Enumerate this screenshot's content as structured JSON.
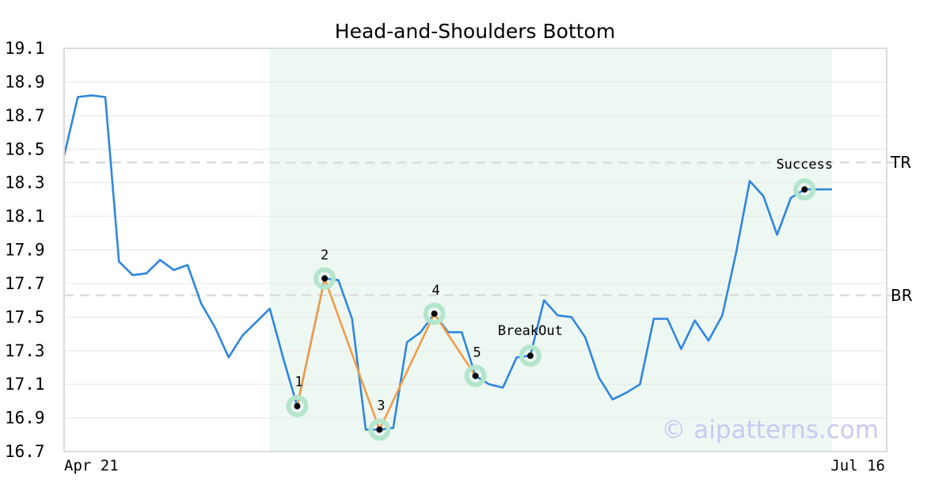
{
  "chart_data": {
    "type": "line",
    "title": "Head-and-Shoulders Bottom",
    "xlabel": "",
    "ylabel": "",
    "ylim": [
      16.7,
      19.1
    ],
    "yticks": [
      "19.1",
      "18.9",
      "18.7",
      "18.5",
      "18.3",
      "18.1",
      "17.9",
      "17.7",
      "17.5",
      "17.3",
      "17.1",
      "16.9",
      "16.7"
    ],
    "x_tick_labels": [
      {
        "index": 0,
        "label": "Apr 21"
      },
      {
        "index": 57,
        "label": "Jul 16"
      }
    ],
    "grid": "horizontal",
    "series": [
      {
        "color": "#2e86de",
        "values": [
          18.46,
          18.81,
          18.82,
          18.81,
          17.83,
          17.75,
          17.76,
          17.84,
          17.78,
          17.81,
          17.58,
          17.44,
          17.26,
          17.39,
          17.47,
          17.55,
          17.25,
          16.97,
          17.35,
          17.73,
          17.72,
          17.49,
          16.83,
          16.83,
          16.84,
          17.35,
          17.41,
          17.52,
          17.41,
          17.41,
          17.15,
          17.1,
          17.08,
          17.26,
          17.27,
          17.6,
          17.51,
          17.5,
          17.38,
          17.14,
          17.01,
          17.05,
          17.1,
          17.49,
          17.49,
          17.31,
          17.48,
          17.36,
          17.51,
          17.88,
          18.31,
          18.22,
          17.99,
          18.21,
          18.26,
          18.26,
          18.26
        ]
      }
    ],
    "pattern_region": {
      "start_index": 15,
      "end_index": 56,
      "color": "#eef8f3"
    },
    "pattern_line": {
      "color": "#f39c47",
      "points": [
        {
          "index": 17,
          "value": 16.97,
          "label": "1"
        },
        {
          "index": 19,
          "value": 17.73,
          "label": "2"
        },
        {
          "index": 23,
          "value": 16.83,
          "label": "3"
        },
        {
          "index": 27,
          "value": 17.52,
          "label": "4"
        },
        {
          "index": 30,
          "value": 17.15,
          "label": "5"
        }
      ]
    },
    "markers": [
      {
        "index": 34,
        "value": 17.27,
        "label": "BreakOut"
      },
      {
        "index": 54,
        "value": 18.26,
        "label": "Success"
      }
    ],
    "levels": [
      {
        "value": 18.42,
        "label": "TR"
      },
      {
        "value": 17.63,
        "label": "BR"
      }
    ],
    "watermark": "© aipatterns.com"
  }
}
